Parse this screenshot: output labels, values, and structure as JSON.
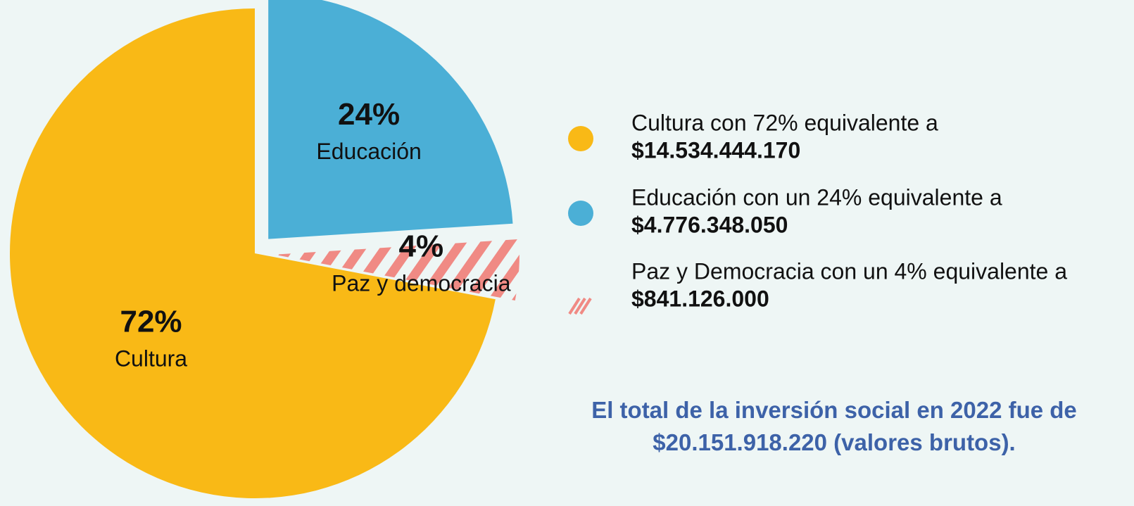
{
  "chart_data": {
    "type": "pie",
    "categories": [
      "Cultura",
      "Educación",
      "Paz y democracia"
    ],
    "values": [
      72,
      24,
      4
    ],
    "value_labels": [
      "72%",
      "24%",
      "4%"
    ],
    "colors": [
      "#f9b916",
      "#4bafd6",
      "#f08a84"
    ],
    "hatched": [
      false,
      false,
      true
    ]
  },
  "legend": [
    {
      "text": "Cultura con 72% equivalente a",
      "amount": "$14.534.444.170"
    },
    {
      "text": "Educación con un 24% equivalente a",
      "amount": "$4.776.348.050"
    },
    {
      "text": "Paz y Democracia con un 4% equivalente a",
      "amount": "$841.126.000"
    }
  ],
  "note": "El total de la inversión social en 2022 fue de $20.151.918.220 (valores brutos)."
}
